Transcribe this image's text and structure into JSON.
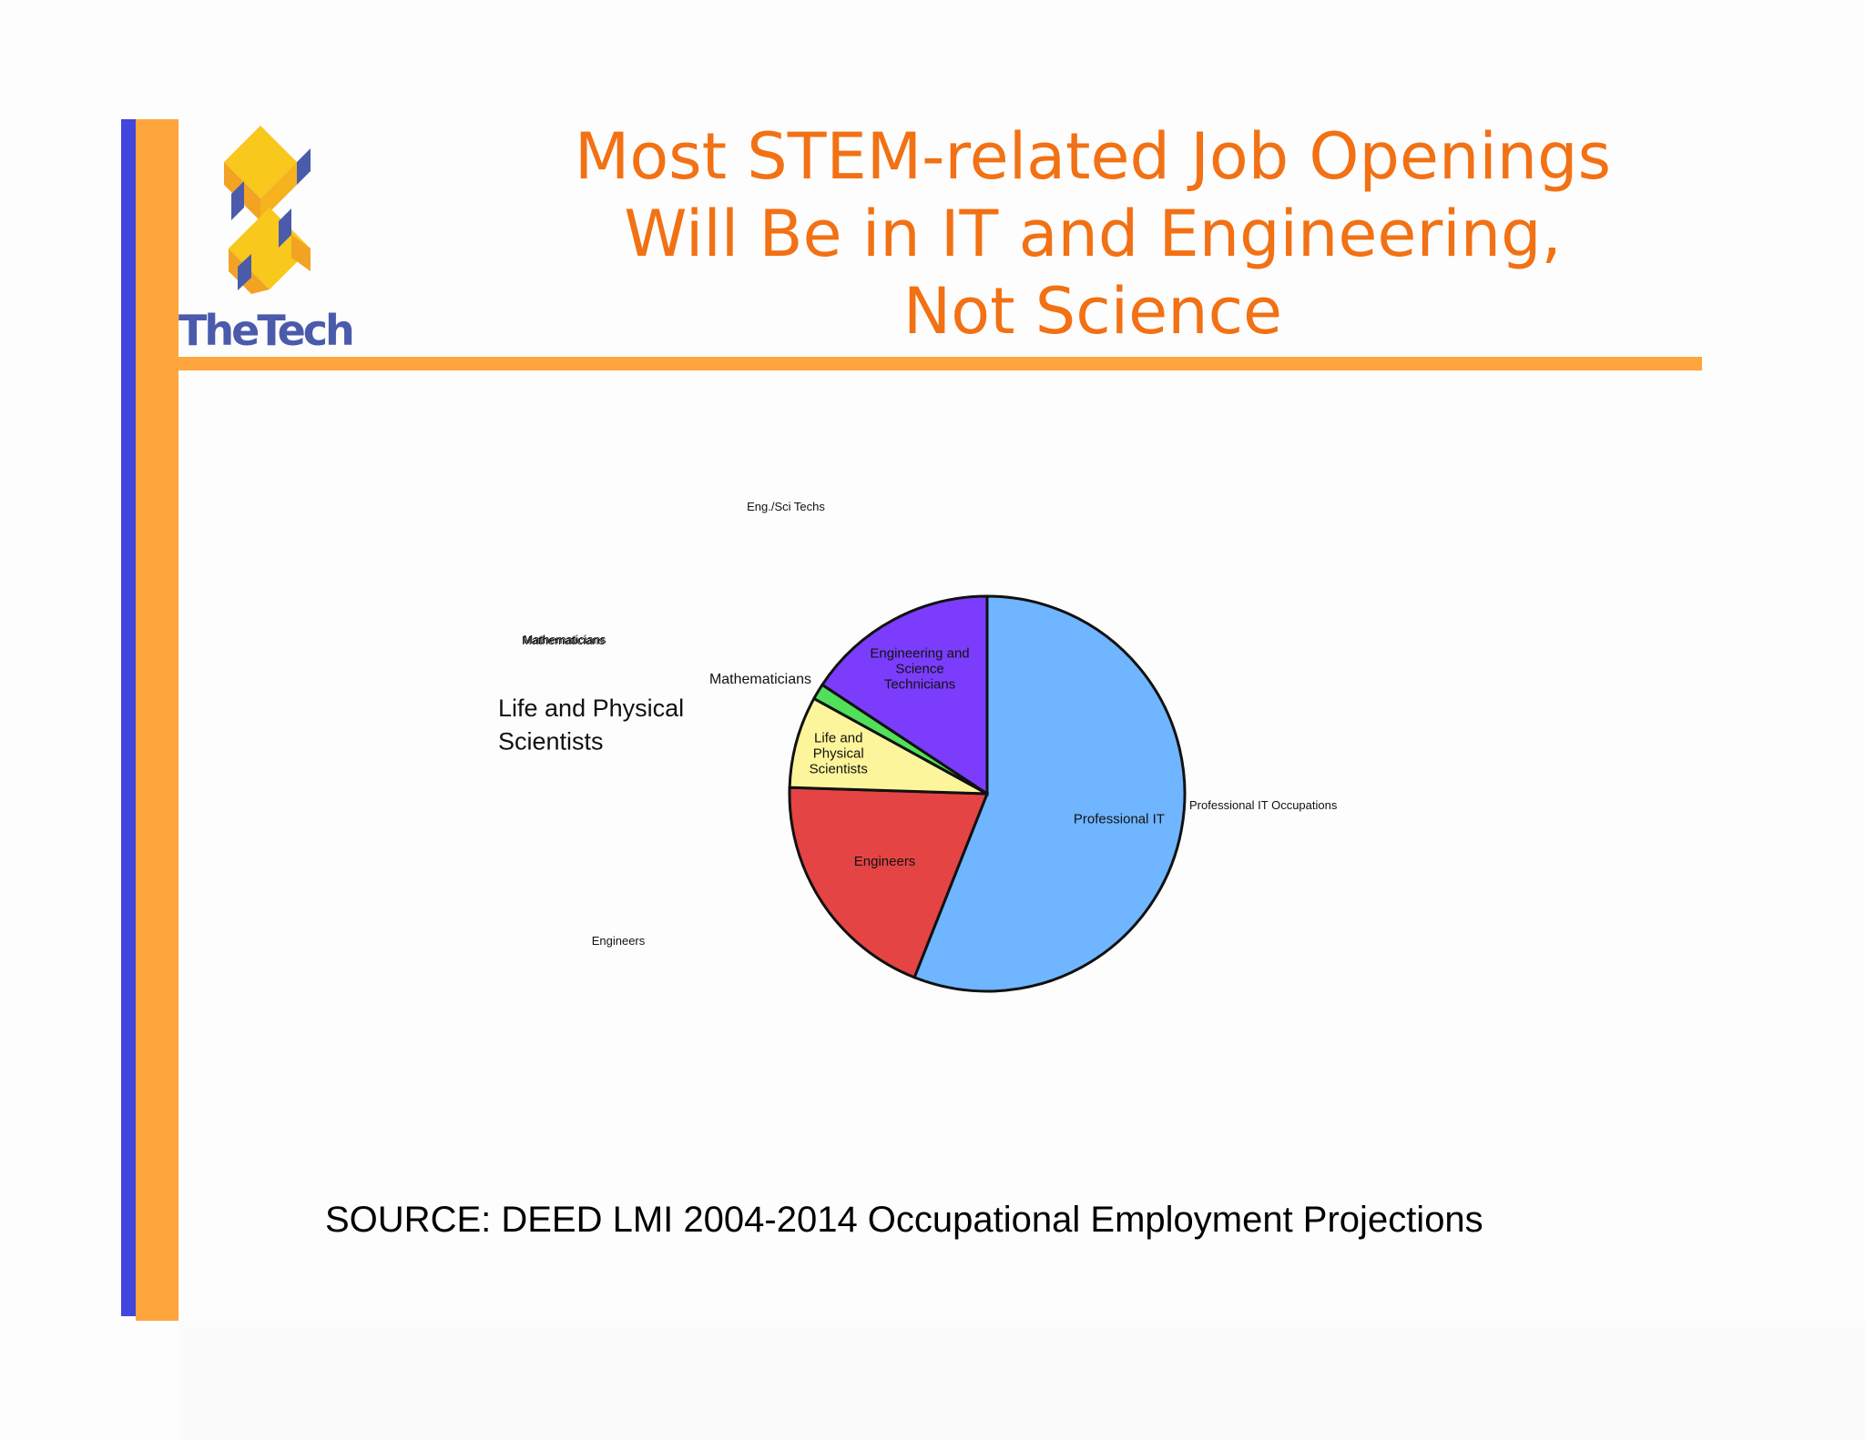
{
  "header": {
    "title": "Most STEM-related Job Openings\nWill Be in IT and Engineering,\nNot Science",
    "logo_text": "TheTech",
    "logo_tm": "™"
  },
  "footer": {
    "source": "SOURCE: DEED LMI 2004-2014 Occupational Employment Projections"
  },
  "colors": {
    "accent_orange": "#ffa53d",
    "accent_blue": "#4146dc",
    "title_orange": "#f27114",
    "logo_blue": "#4b5bab"
  },
  "chart_data": {
    "type": "pie",
    "title": "",
    "slices": [
      {
        "label": "Professional IT",
        "value": 56,
        "color": "#6fb5ff",
        "lines": [
          "Professional IT"
        ],
        "outer_label": "Professional IT Occupations"
      },
      {
        "label": "Engineers",
        "value": 19.5,
        "color": "#e44444",
        "lines": [
          "Engineers"
        ],
        "outer_label": "Engineers"
      },
      {
        "label": "Life and Physical Scientists",
        "value": 7.5,
        "color": "#fdf59b",
        "lines": [
          "Life and",
          "Physical",
          "Scientists"
        ],
        "outer_label": "Life and Physical Scientists"
      },
      {
        "label": "Mathematicians",
        "value": 1.3,
        "color": "#50e05a",
        "lines": [],
        "outer_label": "Mathematicians"
      },
      {
        "label": "Engineering and Science Technicians",
        "value": 15.7,
        "color": "#7b3dfb",
        "lines": [
          "Engineering and",
          "Science",
          "Technicians"
        ],
        "outer_label": "Eng./Sci Techs"
      }
    ],
    "extra_labels": [
      "Mathematicians"
    ]
  }
}
